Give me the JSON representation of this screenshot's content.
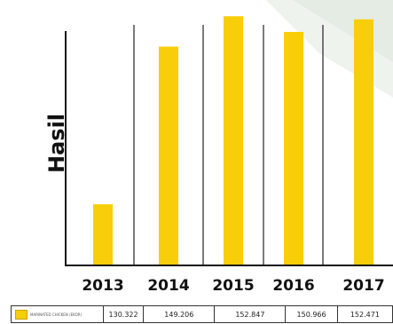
{
  "chart_data": {
    "type": "bar",
    "categories": [
      "2013",
      "2014",
      "2015",
      "2016",
      "2017"
    ],
    "series": [
      {
        "name": "MARINATED CHICKEN (EKOR)",
        "values": [
          130322,
          149206,
          152847,
          150966,
          152471
        ]
      }
    ],
    "value_labels": [
      "130.322",
      "149.206",
      "152.847",
      "150.966",
      "152.471"
    ],
    "title": "",
    "xlabel": "",
    "ylabel": "Hasil",
    "ylim": [
      123000,
      153300
    ],
    "grid": false,
    "bar_color": "#f8cd0a"
  }
}
